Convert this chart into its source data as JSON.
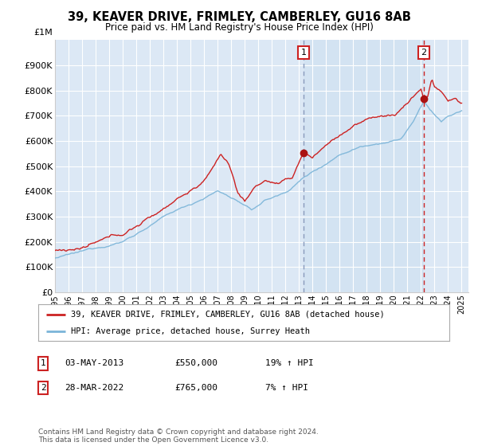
{
  "title": "39, KEAVER DRIVE, FRIMLEY, CAMBERLEY, GU16 8AB",
  "subtitle": "Price paid vs. HM Land Registry's House Price Index (HPI)",
  "hpi_label": "HPI: Average price, detached house, Surrey Heath",
  "price_label": "39, KEAVER DRIVE, FRIMLEY, CAMBERLEY, GU16 8AB (detached house)",
  "annotation1": {
    "label": "1",
    "date": "03-MAY-2013",
    "price": "£550,000",
    "note": "19% ↑ HPI",
    "year": 2013.33
  },
  "annotation2": {
    "label": "2",
    "date": "28-MAR-2022",
    "price": "£765,000",
    "note": "7% ↑ HPI",
    "year": 2022.21
  },
  "footer": "Contains HM Land Registry data © Crown copyright and database right 2024.\nThis data is licensed under the Open Government Licence v3.0.",
  "ylim": [
    0,
    1000000
  ],
  "yticks": [
    0,
    100000,
    200000,
    300000,
    400000,
    500000,
    600000,
    700000,
    800000,
    900000
  ],
  "ytick_labels": [
    "£0",
    "£100K",
    "£200K",
    "£300K",
    "£400K",
    "£500K",
    "£600K",
    "£700K",
    "£800K",
    "£900K"
  ],
  "hpi_color": "#7ab4d8",
  "price_color": "#cc2222",
  "vline1_color": "#8888aa",
  "vline2_color": "#cc2222",
  "bg_color": "#dce8f5",
  "bg_highlight_color": "#cde0f0",
  "grid_color": "#c8d8e8",
  "dot_color": "#aa1111"
}
